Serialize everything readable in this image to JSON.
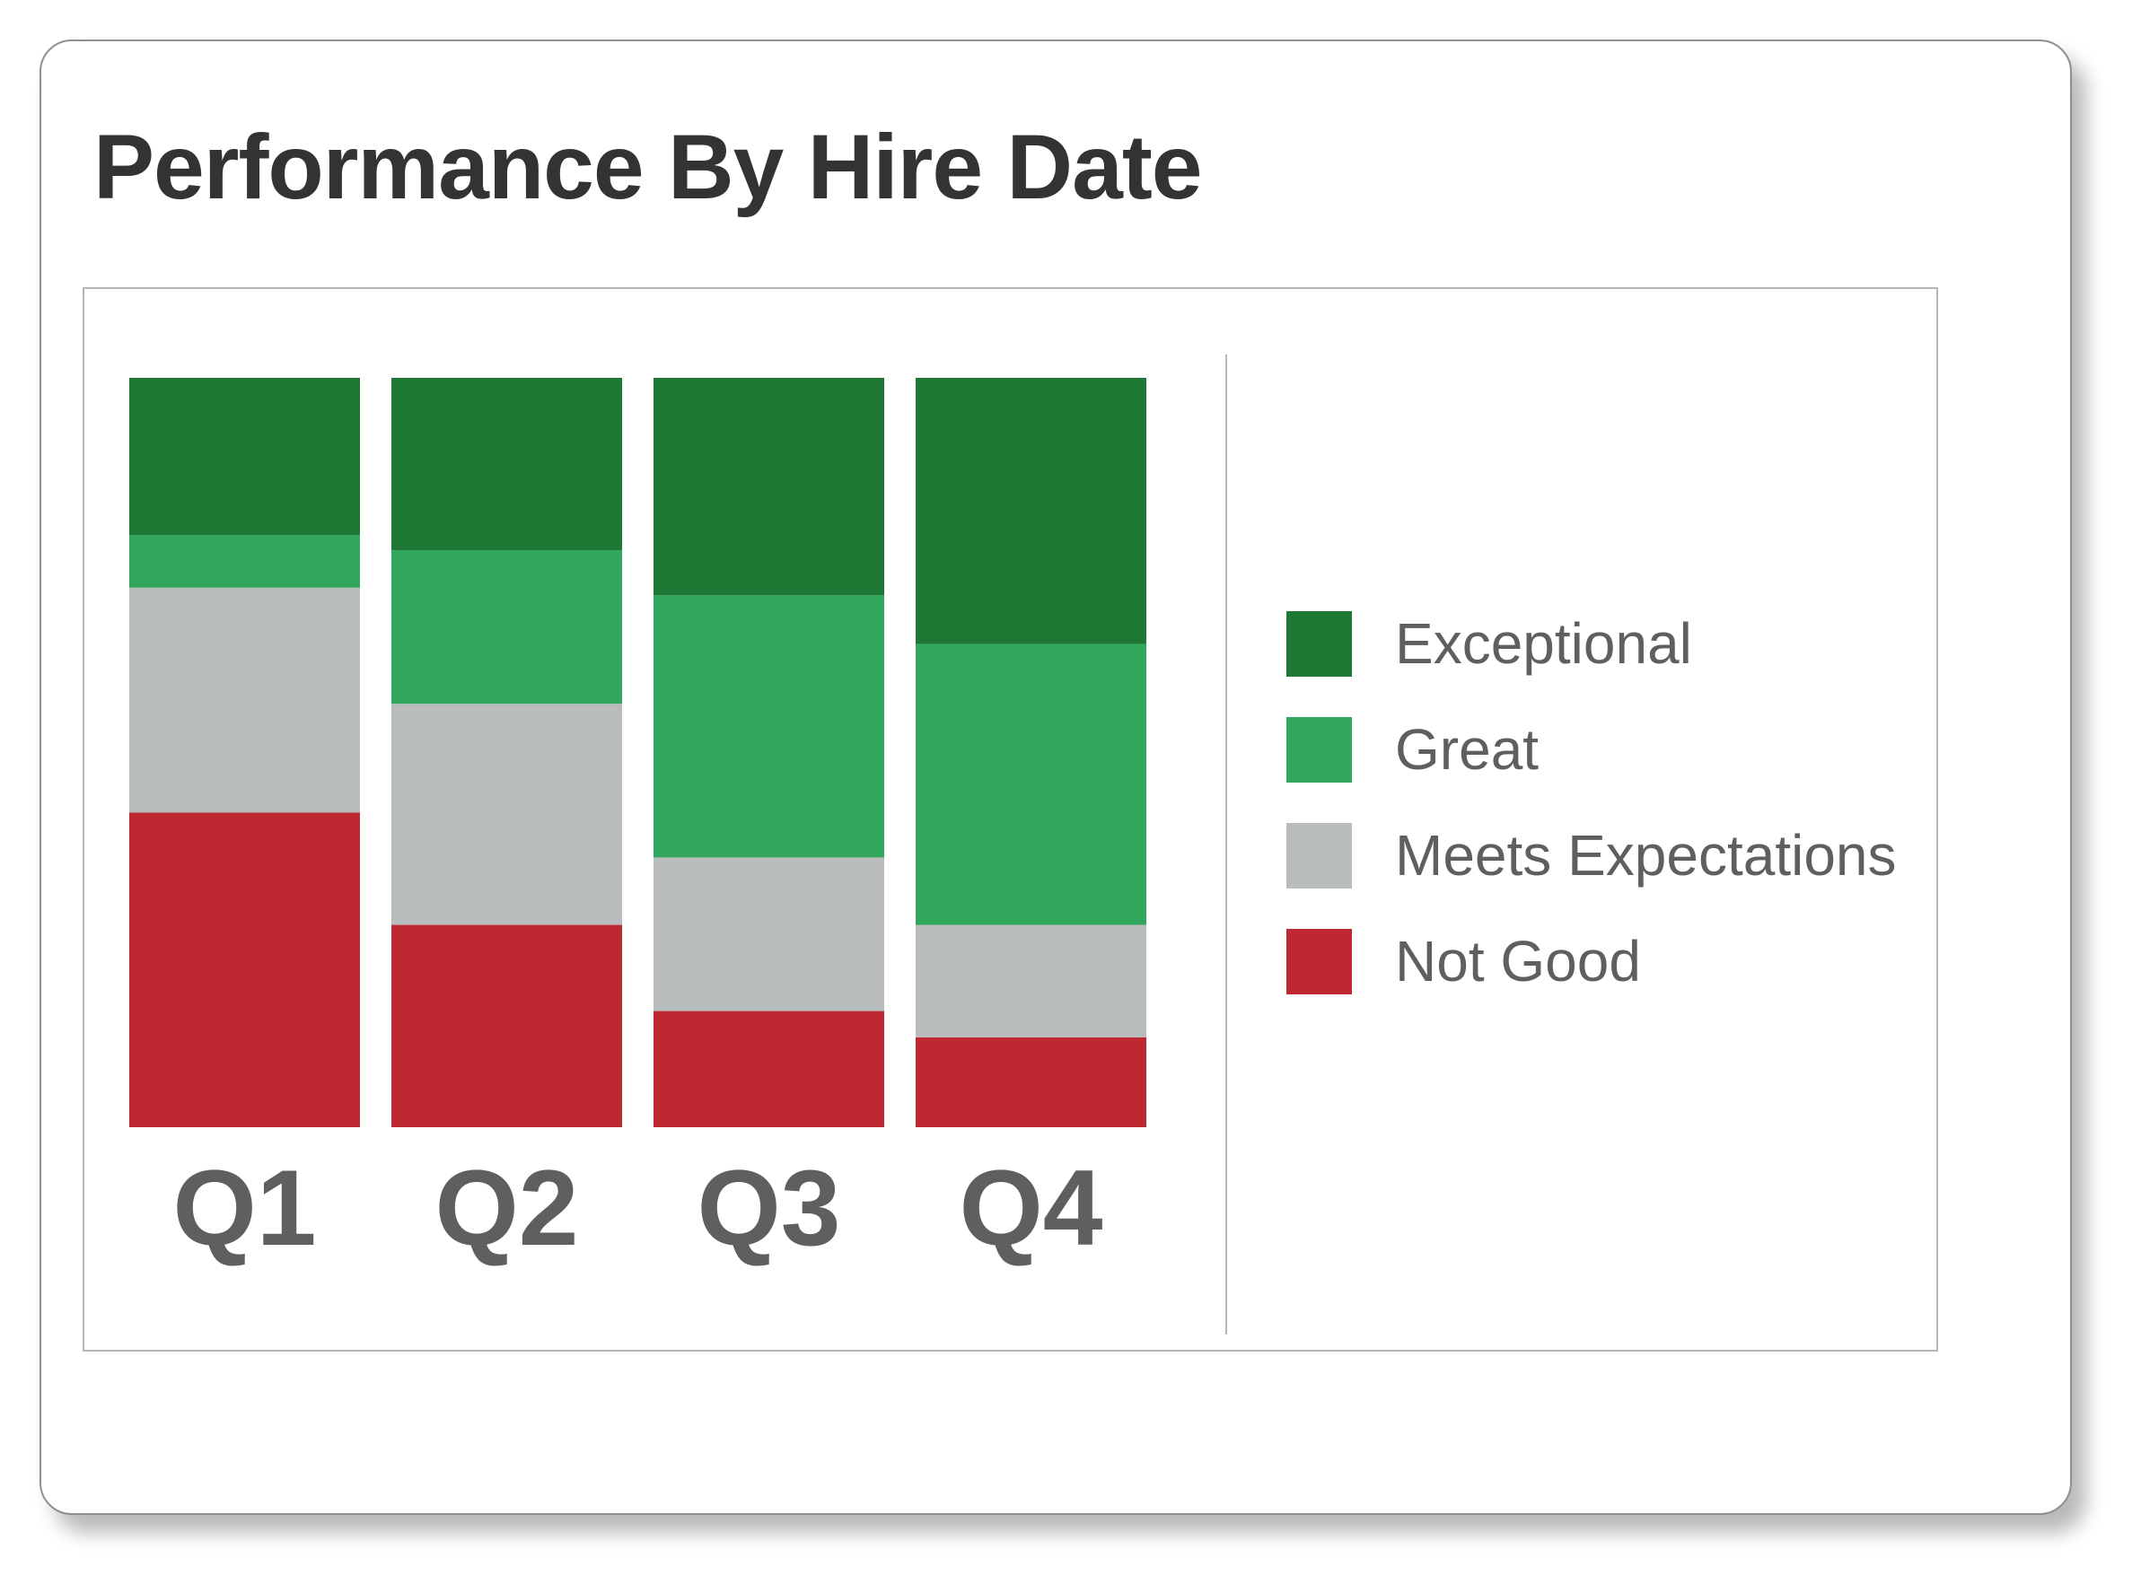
{
  "chart_data": {
    "type": "bar",
    "stacked": true,
    "normalized": true,
    "title": "Performance By Hire Date",
    "categories": [
      "Q1",
      "Q2",
      "Q3",
      "Q4"
    ],
    "series": [
      {
        "name": "Not Good",
        "color": "#be2830",
        "values": [
          42,
          27,
          15.5,
          12
        ]
      },
      {
        "name": "Meets Expectations",
        "color": "#b9bcbd",
        "values": [
          30,
          29.5,
          20.5,
          15
        ]
      },
      {
        "name": "Great",
        "color": "#30a75c",
        "values": [
          7,
          20.5,
          35,
          37.5
        ]
      },
      {
        "name": "Exceptional",
        "color": "#1e7732",
        "values": [
          21,
          23,
          29,
          35.5
        ]
      }
    ],
    "legend_order": [
      "Exceptional",
      "Great",
      "Meets Expectations",
      "Not Good"
    ],
    "legend_position": "right",
    "ylim": [
      0,
      100
    ],
    "grid": false,
    "xlabel": "",
    "ylabel": ""
  }
}
